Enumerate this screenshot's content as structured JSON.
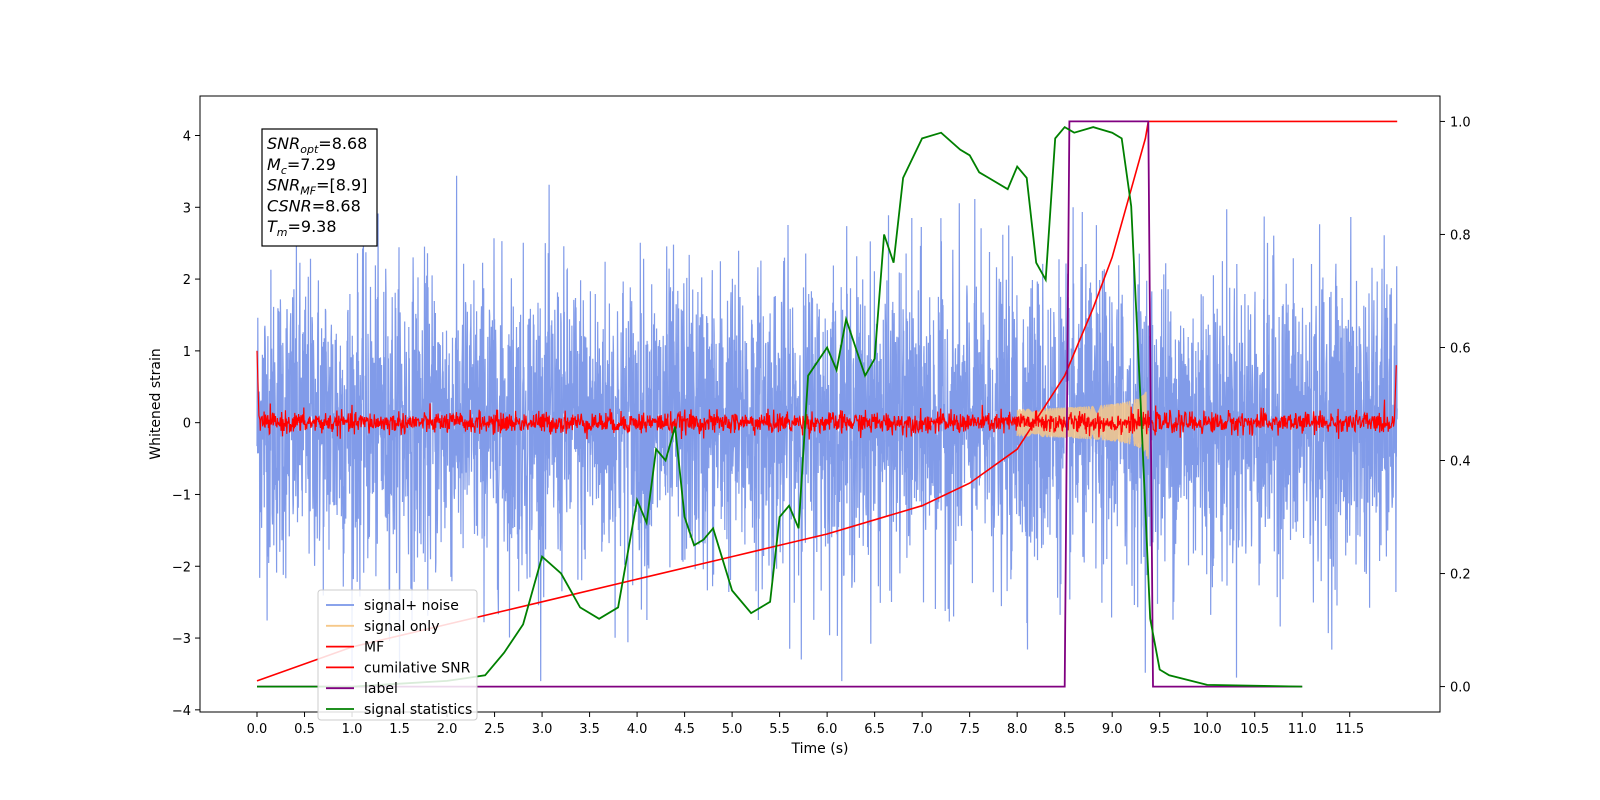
{
  "chart_data": {
    "type": "line",
    "xlabel": "Time (s)",
    "ylabel_left": "Whitened strain",
    "xlim": [
      -0.6,
      12.45
    ],
    "ylim_left": [
      -4.03,
      4.55
    ],
    "ylim_right": [
      -0.045,
      1.045
    ],
    "x_ticks": [
      "0.0",
      "0.5",
      "1.0",
      "1.5",
      "2.0",
      "2.5",
      "3.0",
      "3.5",
      "4.0",
      "4.5",
      "5.0",
      "5.5",
      "6.0",
      "6.5",
      "7.0",
      "7.5",
      "8.0",
      "8.5",
      "9.0",
      "9.5",
      "10.0",
      "10.5",
      "11.0",
      "11.5"
    ],
    "y_ticks_left": [
      "4",
      "3",
      "2",
      "1",
      "0",
      "−1",
      "−2",
      "−3",
      "−4"
    ],
    "y_ticks_right": [
      "1.0",
      "0.8",
      "0.6",
      "0.4",
      "0.2",
      "0.0"
    ],
    "info_box": {
      "lines": [
        {
          "sym": "SNR",
          "sub": "opt",
          "val": "=8.68"
        },
        {
          "sym": "M",
          "sub": "c",
          "val": "=7.29"
        },
        {
          "sym": "SNR",
          "sub": "MF",
          "val": "=[8.9]"
        },
        {
          "sym": "CSNR",
          "sub": "",
          "val": "=8.68"
        },
        {
          "sym": "T",
          "sub": "m",
          "val": "=9.38"
        }
      ]
    },
    "legend": {
      "position": "lower-left",
      "entries": [
        {
          "label": "signal+ noise",
          "color": "#7a96e8"
        },
        {
          "label": "signal only",
          "color": "#f6c889"
        },
        {
          "label": "MF",
          "color": "#ff0000"
        },
        {
          "label": "cumilative SNR",
          "color": "#ff0000"
        },
        {
          "label": "label",
          "color": "#800080"
        },
        {
          "label": "signal statistics",
          "color": "#008000"
        }
      ]
    },
    "series": [
      {
        "name": "signal+ noise",
        "axis": "left",
        "color": "#7a96e8",
        "description": "whitened noise, approx ±2.4 sigma band, 0–12 s"
      },
      {
        "name": "signal only",
        "axis": "left",
        "color": "#f6c889",
        "chirp": {
          "start": 8.0,
          "end": 9.38,
          "peak_amplitude": 0.55
        }
      },
      {
        "name": "MF",
        "axis": "left",
        "color": "#ff0000",
        "description": "band approx ±0.2 around 0"
      },
      {
        "name": "cumilative SNR",
        "axis": "right",
        "x": [
          0.0,
          1.0,
          2.0,
          3.0,
          4.0,
          5.0,
          6.0,
          7.0,
          7.5,
          8.0,
          8.5,
          8.8,
          9.0,
          9.2,
          9.35,
          9.38,
          12.0
        ],
        "y": [
          0.01,
          0.07,
          0.11,
          0.15,
          0.19,
          0.23,
          0.27,
          0.32,
          0.36,
          0.42,
          0.55,
          0.67,
          0.76,
          0.88,
          0.97,
          1.0,
          1.0
        ]
      },
      {
        "name": "label",
        "axis": "right",
        "color": "#800080",
        "x": [
          0.0,
          8.5,
          8.55,
          9.38,
          9.43,
          11.0
        ],
        "y": [
          0.0,
          0.0,
          1.0,
          1.0,
          0.0,
          0.0
        ]
      },
      {
        "name": "signal statistics",
        "axis": "right",
        "color": "#008000",
        "x": [
          0.0,
          0.5,
          1.0,
          1.5,
          2.0,
          2.2,
          2.4,
          2.6,
          2.8,
          3.0,
          3.2,
          3.4,
          3.6,
          3.8,
          4.0,
          4.1,
          4.2,
          4.3,
          4.4,
          4.5,
          4.6,
          4.7,
          4.8,
          5.0,
          5.2,
          5.4,
          5.5,
          5.6,
          5.7,
          5.8,
          6.0,
          6.1,
          6.2,
          6.3,
          6.4,
          6.5,
          6.6,
          6.7,
          6.8,
          7.0,
          7.2,
          7.4,
          7.5,
          7.6,
          7.7,
          7.9,
          8.0,
          8.1,
          8.2,
          8.3,
          8.4,
          8.5,
          8.6,
          8.8,
          9.0,
          9.1,
          9.2,
          9.3,
          9.4,
          9.5,
          9.6,
          10.0,
          11.0
        ],
        "y": [
          0.0,
          0.0,
          0.0,
          0.005,
          0.01,
          0.015,
          0.02,
          0.06,
          0.11,
          0.23,
          0.2,
          0.14,
          0.12,
          0.14,
          0.33,
          0.29,
          0.42,
          0.4,
          0.46,
          0.3,
          0.25,
          0.26,
          0.28,
          0.17,
          0.13,
          0.15,
          0.3,
          0.32,
          0.28,
          0.55,
          0.6,
          0.56,
          0.65,
          0.6,
          0.55,
          0.58,
          0.8,
          0.75,
          0.9,
          0.97,
          0.98,
          0.95,
          0.94,
          0.91,
          0.9,
          0.88,
          0.92,
          0.9,
          0.75,
          0.72,
          0.97,
          0.99,
          0.98,
          0.99,
          0.98,
          0.97,
          0.85,
          0.5,
          0.12,
          0.03,
          0.02,
          0.003,
          0.0
        ]
      }
    ]
  }
}
